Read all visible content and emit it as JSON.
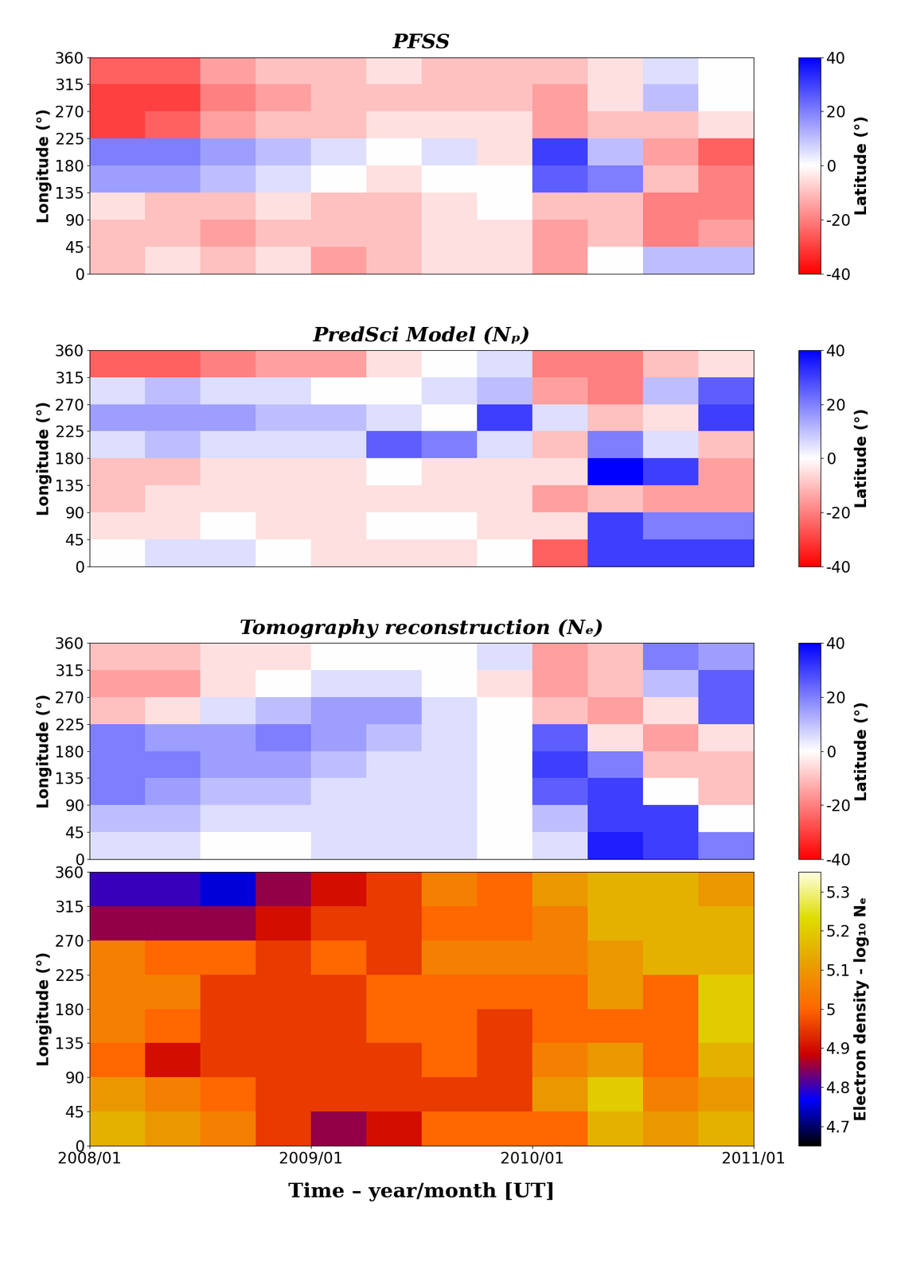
{
  "chart_data": [
    {
      "type": "heatmap",
      "title": "PFSS",
      "ylabel": "Longitude (°)",
      "tick_labels": "y",
      "xlim": [
        2008,
        2011
      ],
      "ylim": [
        0,
        360
      ],
      "yticks": [
        0,
        45,
        90,
        135,
        180,
        225,
        270,
        315,
        360
      ],
      "x_edges": [
        2008,
        2008.25,
        2008.5,
        2008.75,
        2009,
        2009.25,
        2009.5,
        2009.75,
        2010,
        2010.25,
        2010.5,
        2010.75,
        2011
      ],
      "y_edges": [
        0,
        45,
        90,
        135,
        180,
        225,
        270,
        315,
        360
      ],
      "cells": [
        [
          -10,
          -5,
          -10,
          -5,
          -15,
          -10,
          -5,
          -5,
          -15,
          0,
          10,
          10
        ],
        [
          -10,
          -10,
          -15,
          -10,
          -10,
          -10,
          -5,
          -5,
          -15,
          -10,
          -20,
          -15
        ],
        [
          -5,
          -10,
          -10,
          -5,
          -10,
          -10,
          -5,
          0,
          -10,
          -10,
          -20,
          -20
        ],
        [
          15,
          15,
          10,
          5,
          0,
          -5,
          0,
          0,
          25,
          20,
          -10,
          -20
        ],
        [
          20,
          20,
          15,
          10,
          5,
          0,
          5,
          -5,
          30,
          10,
          -15,
          -25
        ],
        [
          -30,
          -25,
          -15,
          -10,
          -10,
          -5,
          -5,
          -5,
          -15,
          -10,
          -10,
          -5
        ],
        [
          -30,
          -30,
          -20,
          -15,
          -10,
          -10,
          -10,
          -10,
          -15,
          -5,
          10,
          0
        ],
        [
          -25,
          -25,
          -15,
          -10,
          -10,
          -5,
          -10,
          -10,
          -10,
          -5,
          5,
          0
        ]
      ],
      "colors": [
        "#ff0000",
        "#ffffff",
        "#0000ff"
      ],
      "colorbar": {
        "label": "Latitude (°)",
        "range": [
          -40,
          40
        ],
        "ticks": [
          -40,
          -20,
          0,
          20,
          40
        ]
      }
    },
    {
      "type": "heatmap",
      "title": "PredSci Model (Nₚ)",
      "ylabel": "Longitude (°)",
      "tick_labels": "y",
      "xlim": [
        2008,
        2011
      ],
      "ylim": [
        0,
        360
      ],
      "yticks": [
        0,
        45,
        90,
        135,
        180,
        225,
        270,
        315,
        360
      ],
      "x_edges": [
        2008,
        2008.25,
        2008.5,
        2008.75,
        2009,
        2009.25,
        2009.5,
        2009.75,
        2010,
        2010.25,
        2010.5,
        2010.75,
        2011
      ],
      "y_edges": [
        0,
        45,
        90,
        135,
        180,
        225,
        270,
        315,
        360
      ],
      "cells": [
        [
          0,
          5,
          5,
          0,
          -5,
          -5,
          -5,
          0,
          -25,
          30,
          30,
          30
        ],
        [
          -5,
          -5,
          0,
          -5,
          -5,
          0,
          0,
          -5,
          -5,
          30,
          20,
          20
        ],
        [
          -10,
          -5,
          -5,
          -5,
          -5,
          -5,
          -5,
          -5,
          -15,
          -10,
          -15,
          -15
        ],
        [
          -10,
          -10,
          -5,
          -5,
          -5,
          0,
          -5,
          -5,
          -5,
          40,
          30,
          -15
        ],
        [
          5,
          10,
          5,
          5,
          5,
          25,
          20,
          5,
          -10,
          20,
          5,
          -10
        ],
        [
          15,
          15,
          15,
          10,
          10,
          5,
          0,
          30,
          5,
          -10,
          -5,
          30
        ],
        [
          5,
          10,
          5,
          5,
          0,
          0,
          5,
          10,
          -15,
          -20,
          10,
          25
        ],
        [
          -25,
          -25,
          -20,
          -15,
          -15,
          -5,
          0,
          5,
          -20,
          -20,
          -10,
          -5
        ]
      ],
      "colors": [
        "#ff0000",
        "#ffffff",
        "#0000ff"
      ],
      "colorbar": {
        "label": "Latitude (°)",
        "range": [
          -40,
          40
        ],
        "ticks": [
          -40,
          -20,
          0,
          20,
          40
        ]
      }
    },
    {
      "type": "heatmap",
      "title": "Tomography reconstruction (Nₑ)",
      "ylabel": "Longitude (°)",
      "tick_labels": "y",
      "xlim": [
        2008,
        2011
      ],
      "ylim": [
        0,
        360
      ],
      "yticks": [
        0,
        45,
        90,
        135,
        180,
        225,
        270,
        315,
        360
      ],
      "x_edges": [
        2008,
        2008.25,
        2008.5,
        2008.75,
        2009,
        2009.25,
        2009.5,
        2009.75,
        2010,
        2010.25,
        2010.5,
        2010.75,
        2011
      ],
      "y_edges": [
        0,
        45,
        90,
        135,
        180,
        225,
        270,
        315,
        360
      ],
      "cells": [
        [
          5,
          5,
          0,
          0,
          5,
          5,
          5,
          0,
          5,
          35,
          30,
          20
        ],
        [
          10,
          10,
          5,
          5,
          5,
          5,
          5,
          0,
          10,
          30,
          30,
          0
        ],
        [
          20,
          15,
          10,
          10,
          5,
          5,
          5,
          0,
          25,
          30,
          0,
          -10
        ],
        [
          20,
          20,
          15,
          15,
          10,
          5,
          5,
          0,
          30,
          20,
          -10,
          -10
        ],
        [
          20,
          15,
          15,
          20,
          15,
          10,
          5,
          0,
          25,
          -5,
          -15,
          -5
        ],
        [
          -10,
          -5,
          5,
          10,
          15,
          15,
          5,
          0,
          -10,
          -15,
          -5,
          25
        ],
        [
          -15,
          -15,
          -5,
          0,
          5,
          5,
          0,
          -5,
          -15,
          -10,
          10,
          25
        ],
        [
          -10,
          -10,
          -5,
          -5,
          0,
          0,
          0,
          5,
          -15,
          -10,
          20,
          15
        ]
      ],
      "colors": [
        "#ff0000",
        "#ffffff",
        "#0000ff"
      ],
      "colorbar": {
        "label": "Latitude (°)",
        "range": [
          -40,
          40
        ],
        "ticks": [
          -40,
          -20,
          0,
          20,
          40
        ]
      }
    },
    {
      "type": "heatmap",
      "ylabel": "Longitude (°)",
      "xlabel": "Time – year/month [UT]",
      "xlim": [
        2008,
        2011
      ],
      "ylim": [
        0,
        360
      ],
      "yticks": [
        0,
        45,
        90,
        135,
        180,
        225,
        270,
        315,
        360
      ],
      "xticks": [
        {
          "value": 2008,
          "label": "2008/01"
        },
        {
          "value": 2009,
          "label": "2009/01"
        },
        {
          "value": 2010,
          "label": "2010/01"
        },
        {
          "value": 2011,
          "label": "2011/01"
        }
      ],
      "x_edges": [
        2008,
        2008.25,
        2008.5,
        2008.75,
        2009,
        2009.25,
        2009.5,
        2009.75,
        2010,
        2010.25,
        2010.5,
        2010.75,
        2011
      ],
      "y_edges": [
        0,
        45,
        90,
        135,
        180,
        225,
        270,
        315,
        360
      ],
      "cells": [
        [
          5.15,
          5.1,
          5.05,
          4.95,
          4.85,
          4.9,
          5.0,
          5.0,
          5.0,
          5.15,
          5.1,
          5.15
        ],
        [
          5.1,
          5.05,
          5.0,
          4.95,
          4.95,
          4.95,
          4.95,
          4.95,
          5.1,
          5.2,
          5.05,
          5.1
        ],
        [
          5.0,
          4.9,
          4.95,
          4.95,
          4.95,
          4.95,
          5.0,
          4.95,
          5.05,
          5.1,
          5.0,
          5.15
        ],
        [
          5.05,
          5.0,
          4.95,
          4.95,
          4.95,
          5.0,
          5.0,
          4.95,
          5.0,
          5.0,
          5.0,
          5.2
        ],
        [
          5.05,
          5.05,
          4.95,
          4.95,
          4.95,
          5.0,
          5.0,
          5.0,
          5.0,
          5.1,
          5.0,
          5.2
        ],
        [
          5.05,
          5.0,
          5.0,
          4.95,
          5.0,
          4.95,
          5.05,
          5.05,
          5.05,
          5.1,
          5.15,
          5.15
        ],
        [
          4.85,
          4.85,
          4.85,
          4.9,
          4.95,
          4.95,
          5.0,
          5.0,
          5.05,
          5.15,
          5.15,
          5.15
        ],
        [
          4.8,
          4.8,
          4.75,
          4.85,
          4.9,
          4.95,
          5.05,
          5.0,
          5.1,
          5.15,
          5.15,
          5.1
        ]
      ],
      "colors": [
        "#000000",
        "#0000ff",
        "#cc0000",
        "#ff6600",
        "#e8a000",
        "#dddd00",
        "#ffffe0"
      ],
      "colorbar": {
        "label": "Electron density - log₁₀ Nₑ",
        "range": [
          4.65,
          5.35
        ],
        "ticks": [
          4.7,
          4.8,
          4.9,
          5,
          5.1,
          5.2,
          5.3
        ]
      }
    }
  ]
}
